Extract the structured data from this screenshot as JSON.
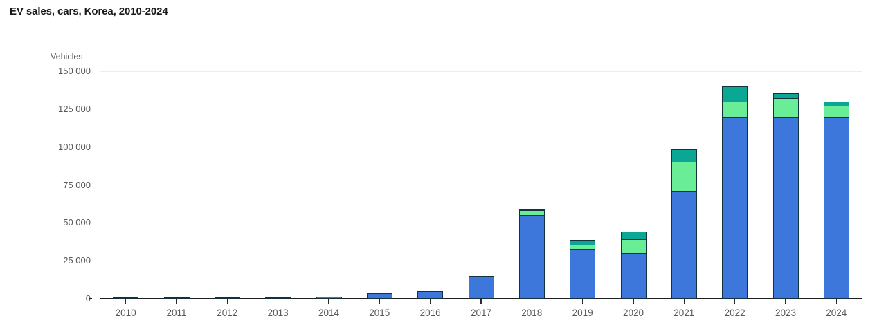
{
  "header": {
    "title": "EV sales, cars, Korea, 2010-2024"
  },
  "chart_data": {
    "type": "bar",
    "stacked": true,
    "title": "EV sales, cars, Korea, 2010-2024",
    "ylabel": "Vehicles",
    "categories": [
      "2010",
      "2011",
      "2012",
      "2013",
      "2014",
      "2015",
      "2016",
      "2017",
      "2018",
      "2019",
      "2020",
      "2021",
      "2022",
      "2023",
      "2024"
    ],
    "series": [
      {
        "name": "blue-series",
        "color": "#3D77DB",
        "values": [
          60,
          300,
          750,
          800,
          1500,
          3500,
          5000,
          15000,
          55500,
          33000,
          30500,
          71500,
          120000,
          120000,
          120000
        ]
      },
      {
        "name": "green-series",
        "color": "#69ED96",
        "values": [
          0,
          0,
          0,
          0,
          0,
          0,
          0,
          0,
          3600,
          3600,
          9400,
          19500,
          11000,
          13000,
          8300
        ]
      },
      {
        "name": "teal-series",
        "color": "#0AA795",
        "values": [
          0,
          0,
          0,
          0,
          0,
          0,
          0,
          0,
          700,
          3500,
          5500,
          9000,
          10500,
          4000,
          3100
        ]
      }
    ],
    "ylim": [
      0,
      150000
    ],
    "y_ticks": [
      {
        "value": 0,
        "label": "0"
      },
      {
        "value": 25000,
        "label": "25 000"
      },
      {
        "value": 50000,
        "label": "50 000"
      },
      {
        "value": 75000,
        "label": "75 000"
      },
      {
        "value": 100000,
        "label": "100 000"
      },
      {
        "value": 125000,
        "label": "125 000"
      },
      {
        "value": 150000,
        "label": "150 000"
      }
    ],
    "grid": "horizontal",
    "legend": "none",
    "styles": {
      "bar_stroke": "#12323E",
      "axis_color": "#1F1F1F",
      "grid_color": "#ECECEC",
      "tick_label_color": "#58585B",
      "title_color": "#191919"
    }
  }
}
